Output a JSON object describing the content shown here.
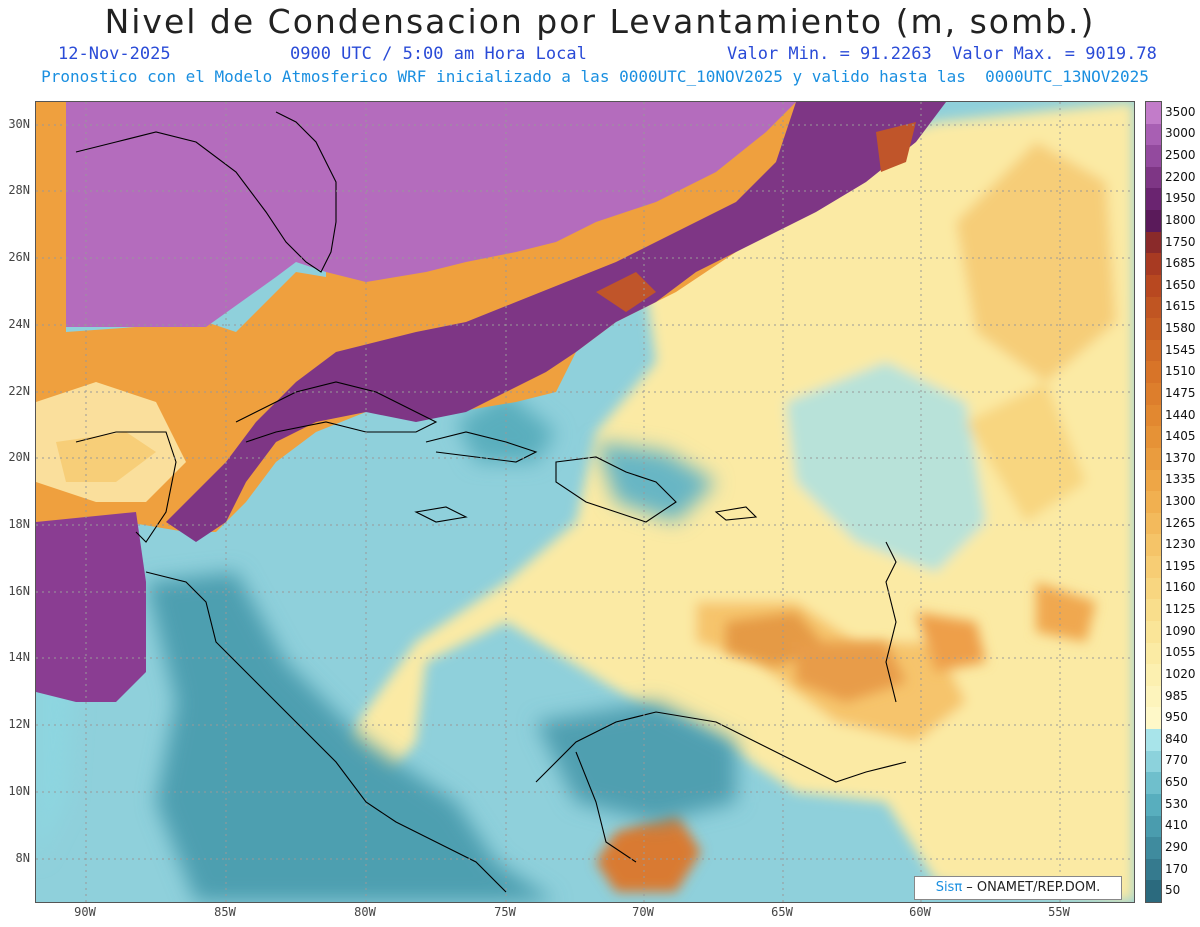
{
  "header": {
    "title": "Nivel de Condensacion por Levantamiento (m, somb.)",
    "date": "12-Nov-2025",
    "time": "0900 UTC / 5:00 am Hora Local",
    "minmax": "Valor Min. = 91.2263  Valor Max. = 9019.78",
    "forecast": "Pronostico con el Modelo Atmosferico WRF inicializado a las 0000UTC_10NOV2025 y valido hasta las  0000UTC_13NOV2025"
  },
  "axes": {
    "lat_labels": [
      "30N",
      "28N",
      "26N",
      "24N",
      "22N",
      "20N",
      "18N",
      "16N",
      "14N",
      "12N",
      "10N",
      "8N"
    ],
    "lon_labels": [
      "90W",
      "85W",
      "80W",
      "75W",
      "70W",
      "65W",
      "60W",
      "55W"
    ]
  },
  "colorbar": {
    "labels": [
      "3500",
      "3000",
      "2500",
      "2200",
      "1950",
      "1800",
      "1750",
      "1685",
      "1650",
      "1615",
      "1580",
      "1545",
      "1510",
      "1475",
      "1440",
      "1405",
      "1370",
      "1335",
      "1300",
      "1265",
      "1230",
      "1195",
      "1160",
      "1125",
      "1090",
      "1055",
      "1020",
      "985",
      "950",
      "840",
      "770",
      "650",
      "530",
      "410",
      "290",
      "170",
      "50"
    ],
    "colors": [
      "#c27cc9",
      "#a85fb3",
      "#934a9e",
      "#7e3685",
      "#6a2470",
      "#5a1a5a",
      "#8a2a2a",
      "#a83a22",
      "#b84820",
      "#c05522",
      "#c86024",
      "#d06a26",
      "#d87428",
      "#dd7e2c",
      "#e28830",
      "#e69236",
      "#ea9c3e",
      "#eea646",
      "#f1b050",
      "#f3ba5c",
      "#f5c468",
      "#f7cd74",
      "#f8d680",
      "#f9de8c",
      "#fae598",
      "#fbeba4",
      "#fcf0b0",
      "#fdf4bc",
      "#fef8c8",
      "#a8e4ea",
      "#8cd2dc",
      "#6fbfcc",
      "#58aebe",
      "#4a9cae",
      "#3f8b9e",
      "#357a8e",
      "#2b6a7e"
    ]
  },
  "credit": {
    "sis": "Sisπ",
    "text": " – ONAMET/REP.DOM."
  }
}
